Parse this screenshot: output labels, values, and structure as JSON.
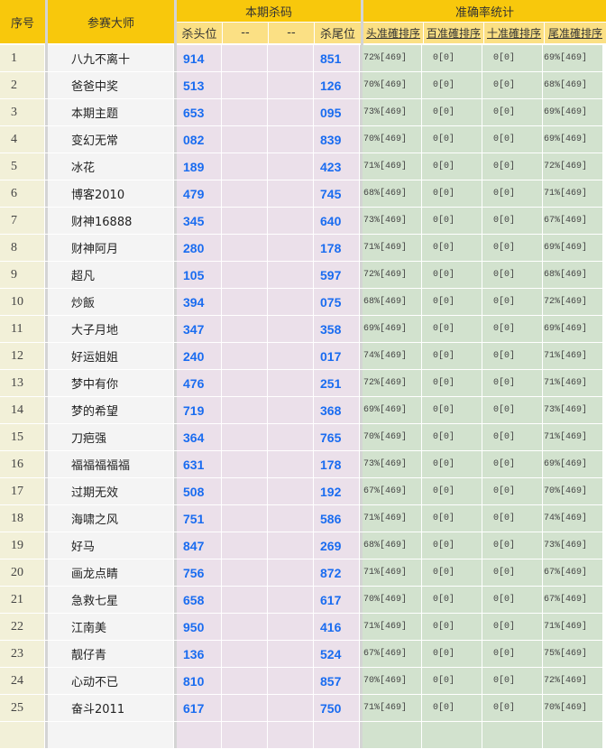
{
  "header": {
    "index": "序号",
    "master": "参赛大师",
    "kill_group": "本期杀码",
    "kill_cols": [
      "杀头位",
      "--",
      "--",
      "杀尾位"
    ],
    "stats_group": "准确率统计",
    "stats_cols": [
      "头准確排序",
      "百准確排序",
      "十准確排序",
      "尾准確排序"
    ]
  },
  "colors": {
    "header": "#f8c80c",
    "subheader": "#fbe084",
    "kill_number": "#1a6cf0",
    "stats_bg": "#d2e2ce",
    "kill_bg": "#ebe0ea"
  },
  "rows": [
    {
      "idx": "1",
      "name": "八九不离十",
      "head": "914",
      "tail": "851",
      "s": [
        "72%[469]",
        "0[0]",
        "0[0]",
        "69%[469]"
      ]
    },
    {
      "idx": "2",
      "name": "爸爸中奖",
      "head": "513",
      "tail": "126",
      "s": [
        "70%[469]",
        "0[0]",
        "0[0]",
        "68%[469]"
      ]
    },
    {
      "idx": "3",
      "name": "本期主题",
      "head": "653",
      "tail": "095",
      "s": [
        "73%[469]",
        "0[0]",
        "0[0]",
        "69%[469]"
      ]
    },
    {
      "idx": "4",
      "name": "变幻无常",
      "head": "082",
      "tail": "839",
      "s": [
        "70%[469]",
        "0[0]",
        "0[0]",
        "69%[469]"
      ]
    },
    {
      "idx": "5",
      "name": "冰花",
      "head": "189",
      "tail": "423",
      "s": [
        "71%[469]",
        "0[0]",
        "0[0]",
        "72%[469]"
      ]
    },
    {
      "idx": "6",
      "name": "博客2010",
      "head": "479",
      "tail": "745",
      "s": [
        "68%[469]",
        "0[0]",
        "0[0]",
        "71%[469]"
      ]
    },
    {
      "idx": "7",
      "name": "财神16888",
      "head": "345",
      "tail": "640",
      "s": [
        "73%[469]",
        "0[0]",
        "0[0]",
        "67%[469]"
      ]
    },
    {
      "idx": "8",
      "name": "财神阿月",
      "head": "280",
      "tail": "178",
      "s": [
        "71%[469]",
        "0[0]",
        "0[0]",
        "69%[469]"
      ]
    },
    {
      "idx": "9",
      "name": "超凡",
      "head": "105",
      "tail": "597",
      "s": [
        "72%[469]",
        "0[0]",
        "0[0]",
        "68%[469]"
      ]
    },
    {
      "idx": "10",
      "name": "炒飯",
      "head": "394",
      "tail": "075",
      "s": [
        "68%[469]",
        "0[0]",
        "0[0]",
        "72%[469]"
      ]
    },
    {
      "idx": "11",
      "name": "大子月地",
      "head": "347",
      "tail": "358",
      "s": [
        "69%[469]",
        "0[0]",
        "0[0]",
        "69%[469]"
      ]
    },
    {
      "idx": "12",
      "name": "好运姐姐",
      "head": "240",
      "tail": "017",
      "s": [
        "74%[469]",
        "0[0]",
        "0[0]",
        "71%[469]"
      ]
    },
    {
      "idx": "13",
      "name": "梦中有你",
      "head": "476",
      "tail": "251",
      "s": [
        "72%[469]",
        "0[0]",
        "0[0]",
        "71%[469]"
      ]
    },
    {
      "idx": "14",
      "name": "梦的希望",
      "head": "719",
      "tail": "368",
      "s": [
        "69%[469]",
        "0[0]",
        "0[0]",
        "73%[469]"
      ]
    },
    {
      "idx": "15",
      "name": "刀疤强",
      "head": "364",
      "tail": "765",
      "s": [
        "70%[469]",
        "0[0]",
        "0[0]",
        "71%[469]"
      ]
    },
    {
      "idx": "16",
      "name": "福福福福福",
      "head": "631",
      "tail": "178",
      "s": [
        "73%[469]",
        "0[0]",
        "0[0]",
        "69%[469]"
      ]
    },
    {
      "idx": "17",
      "name": "过期无效",
      "head": "508",
      "tail": "192",
      "s": [
        "67%[469]",
        "0[0]",
        "0[0]",
        "70%[469]"
      ]
    },
    {
      "idx": "18",
      "name": "海啸之风",
      "head": "751",
      "tail": "586",
      "s": [
        "71%[469]",
        "0[0]",
        "0[0]",
        "74%[469]"
      ]
    },
    {
      "idx": "19",
      "name": "好马",
      "head": "847",
      "tail": "269",
      "s": [
        "68%[469]",
        "0[0]",
        "0[0]",
        "73%[469]"
      ]
    },
    {
      "idx": "20",
      "name": "画龙点睛",
      "head": "756",
      "tail": "872",
      "s": [
        "71%[469]",
        "0[0]",
        "0[0]",
        "67%[469]"
      ]
    },
    {
      "idx": "21",
      "name": "急救七星",
      "head": "658",
      "tail": "617",
      "s": [
        "70%[469]",
        "0[0]",
        "0[0]",
        "67%[469]"
      ]
    },
    {
      "idx": "22",
      "name": "江南美",
      "head": "950",
      "tail": "416",
      "s": [
        "71%[469]",
        "0[0]",
        "0[0]",
        "71%[469]"
      ]
    },
    {
      "idx": "23",
      "name": "靓仔青",
      "head": "136",
      "tail": "524",
      "s": [
        "67%[469]",
        "0[0]",
        "0[0]",
        "75%[469]"
      ]
    },
    {
      "idx": "24",
      "name": "心动不已",
      "head": "810",
      "tail": "857",
      "s": [
        "70%[469]",
        "0[0]",
        "0[0]",
        "72%[469]"
      ]
    },
    {
      "idx": "25",
      "name": "奋斗2011",
      "head": "617",
      "tail": "750",
      "s": [
        "71%[469]",
        "0[0]",
        "0[0]",
        "70%[469]"
      ]
    }
  ]
}
